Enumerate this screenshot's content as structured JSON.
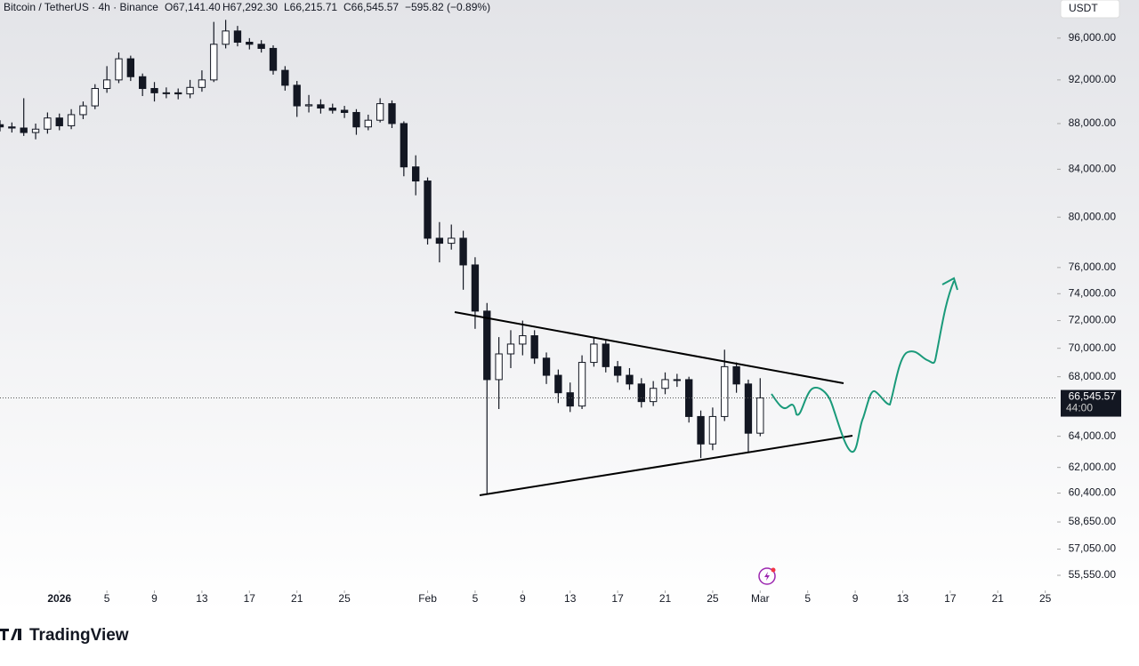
{
  "chart_data": {
    "type": "candlestick",
    "legend": {
      "symbol": "Bitcoin / TetherUS · 4h · Binance",
      "open": "O67,141.40",
      "high": "H67,292.30",
      "low": "L66,215.71",
      "close": "C66,545.57",
      "change": "−595.82 (−0.89%)"
    },
    "currency": "USDT",
    "brand": "TradingView",
    "countdown": "44:00",
    "last_price": {
      "value": 66545.57,
      "label": "66,545.57"
    },
    "color": "#131722",
    "log_scale": true,
    "xlim": [
      "2025-12-27",
      "2026-03-26"
    ],
    "ylim": [
      54900,
      99800
    ],
    "yticks": [
      {
        "value": 96000,
        "label": "96,000.00"
      },
      {
        "value": 92000,
        "label": "92,000.00"
      },
      {
        "value": 88000,
        "label": "88,000.00"
      },
      {
        "value": 84000,
        "label": "84,000.00"
      },
      {
        "value": 80000,
        "label": "80,000.00"
      },
      {
        "value": 76000,
        "label": "76,000.00"
      },
      {
        "value": 74000,
        "label": "74,000.00"
      },
      {
        "value": 72000,
        "label": "72,000.00"
      },
      {
        "value": 70000,
        "label": "70,000.00"
      },
      {
        "value": 68000,
        "label": "68,000.00"
      },
      {
        "value": 64000,
        "label": "64,000.00"
      },
      {
        "value": 62000,
        "label": "62,000.00"
      },
      {
        "value": 60400,
        "label": "60,400.00"
      },
      {
        "value": 58650,
        "label": "58,650.00"
      },
      {
        "value": 57050,
        "label": "57,050.00"
      },
      {
        "value": 55550,
        "label": "55,550.00"
      }
    ],
    "xticks": [
      {
        "value": "2026-01-01",
        "label": "2026"
      },
      {
        "value": "2026-01-05",
        "label": "5"
      },
      {
        "value": "2026-01-09",
        "label": "9"
      },
      {
        "value": "2026-01-13",
        "label": "13"
      },
      {
        "value": "2026-01-17",
        "label": "17"
      },
      {
        "value": "2026-01-21",
        "label": "21"
      },
      {
        "value": "2026-01-25",
        "label": "25"
      },
      {
        "value": "2026-02-01",
        "label": "Feb"
      },
      {
        "value": "2026-02-05",
        "label": "5"
      },
      {
        "value": "2026-02-09",
        "label": "9"
      },
      {
        "value": "2026-02-13",
        "label": "13"
      },
      {
        "value": "2026-02-17",
        "label": "17"
      },
      {
        "value": "2026-02-21",
        "label": "21"
      },
      {
        "value": "2026-02-25",
        "label": "25"
      },
      {
        "value": "2026-03-01",
        "label": "Mar"
      },
      {
        "value": "2026-03-05",
        "label": "5"
      },
      {
        "value": "2026-03-09",
        "label": "9"
      },
      {
        "value": "2026-03-13",
        "label": "13"
      },
      {
        "value": "2026-03-17",
        "label": "17"
      },
      {
        "value": "2026-03-21",
        "label": "21"
      },
      {
        "value": "2026-03-25",
        "label": "25"
      }
    ],
    "x": [
      "2025-12-27",
      "2025-12-28",
      "2025-12-29",
      "2025-12-30",
      "2025-12-31",
      "2026-01-01",
      "2026-01-02",
      "2026-01-03",
      "2026-01-04",
      "2026-01-05",
      "2026-01-06",
      "2026-01-07",
      "2026-01-08",
      "2026-01-09",
      "2026-01-10",
      "2026-01-11",
      "2026-01-12",
      "2026-01-13",
      "2026-01-14",
      "2026-01-15",
      "2026-01-16",
      "2026-01-17",
      "2026-01-18",
      "2026-01-19",
      "2026-01-20",
      "2026-01-21",
      "2026-01-22",
      "2026-01-23",
      "2026-01-24",
      "2026-01-25",
      "2026-01-26",
      "2026-01-27",
      "2026-01-28",
      "2026-01-29",
      "2026-01-30",
      "2026-01-31",
      "2026-02-01",
      "2026-02-02",
      "2026-02-03",
      "2026-02-04",
      "2026-02-05",
      "2026-02-06",
      "2026-02-07",
      "2026-02-08",
      "2026-02-09",
      "2026-02-10",
      "2026-02-11",
      "2026-02-12",
      "2026-02-13",
      "2026-02-14",
      "2026-02-15",
      "2026-02-16",
      "2026-02-17",
      "2026-02-18",
      "2026-02-19",
      "2026-02-20",
      "2026-02-21",
      "2026-02-22",
      "2026-02-23",
      "2026-02-24",
      "2026-02-25",
      "2026-02-26",
      "2026-02-27",
      "2026-02-28",
      "2026-03-01"
    ],
    "open": [
      87900,
      87700,
      87600,
      87200,
      87500,
      88500,
      87800,
      88800,
      89600,
      91200,
      92000,
      94000,
      92300,
      91200,
      90800,
      90800,
      90700,
      91300,
      92000,
      95400,
      96700,
      95600,
      95400,
      95000,
      92900,
      91500,
      89600,
      89700,
      89400,
      89200,
      89000,
      87700,
      88300,
      89800,
      88000,
      84200,
      83000,
      78300,
      77900,
      78300,
      76200,
      72700,
      67800,
      69600,
      70300,
      70900,
      69300,
      68100,
      66900,
      66000,
      69000,
      70300,
      68700,
      68100,
      67500,
      66300,
      67200,
      67800,
      67800,
      65300,
      63500,
      65300,
      68700,
      67500,
      64200
    ],
    "high": [
      88300,
      88100,
      90300,
      88000,
      89000,
      88900,
      89300,
      90000,
      91600,
      93300,
      94600,
      94300,
      92600,
      91800,
      91300,
      91200,
      92000,
      92900,
      97600,
      97800,
      97200,
      96000,
      95800,
      95300,
      93300,
      91900,
      90600,
      90200,
      89800,
      89600,
      89300,
      88800,
      90300,
      90100,
      88200,
      85200,
      83300,
      79600,
      79400,
      78900,
      76800,
      73300,
      70800,
      71300,
      72000,
      71300,
      69700,
      68500,
      67600,
      69500,
      70800,
      70600,
      69100,
      68600,
      67900,
      67700,
      68300,
      68200,
      68000,
      65700,
      65900,
      69900,
      69000,
      67800,
      67900
    ],
    "low": [
      87300,
      87200,
      86900,
      86600,
      87100,
      87400,
      87500,
      88400,
      89300,
      90800,
      91700,
      91900,
      90500,
      90000,
      90300,
      90200,
      90300,
      90900,
      91800,
      95000,
      95200,
      94900,
      94600,
      92500,
      91000,
      88600,
      89000,
      88900,
      88900,
      88500,
      87000,
      87400,
      88100,
      87600,
      83400,
      81800,
      77800,
      76400,
      77400,
      74300,
      71400,
      60300,
      65800,
      68600,
      69500,
      68900,
      67500,
      66200,
      65600,
      65800,
      68700,
      68300,
      67600,
      67100,
      65900,
      66000,
      66800,
      67300,
      64900,
      62600,
      63100,
      65000,
      66900,
      63000,
      64000
    ],
    "close": [
      87700,
      87600,
      87200,
      87500,
      88500,
      87800,
      88800,
      89600,
      91200,
      92000,
      94000,
      92300,
      91200,
      90800,
      90800,
      90700,
      91300,
      92000,
      95400,
      96700,
      95600,
      95400,
      95000,
      92900,
      91500,
      89600,
      89700,
      89400,
      89200,
      89000,
      87700,
      88300,
      89800,
      88000,
      84200,
      83000,
      78300,
      77900,
      78300,
      76200,
      72700,
      67800,
      69600,
      70300,
      70900,
      69300,
      68100,
      66900,
      66000,
      69000,
      70300,
      68700,
      68100,
      67500,
      66300,
      67200,
      67800,
      67800,
      65300,
      63500,
      65300,
      68700,
      67500,
      64200,
      66546
    ]
  }
}
